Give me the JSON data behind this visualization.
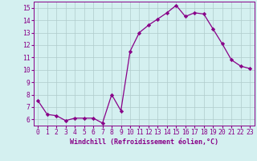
{
  "x": [
    0,
    1,
    2,
    3,
    4,
    5,
    6,
    7,
    8,
    9,
    10,
    11,
    12,
    13,
    14,
    15,
    16,
    17,
    18,
    19,
    20,
    21,
    22,
    23
  ],
  "y": [
    7.5,
    6.4,
    6.3,
    5.9,
    6.1,
    6.1,
    6.1,
    5.7,
    8.0,
    6.7,
    11.5,
    13.0,
    13.6,
    14.1,
    14.6,
    15.2,
    14.3,
    14.6,
    14.5,
    13.3,
    12.1,
    10.8,
    10.3,
    10.1
  ],
  "line_color": "#880088",
  "marker": "D",
  "markersize": 2.2,
  "linewidth": 0.9,
  "background_color": "#d4f0f0",
  "grid_color": "#b0cccc",
  "xlabel": "Windchill (Refroidissement éolien,°C)",
  "xlabel_fontsize": 6.0,
  "ylabel_ticks": [
    6,
    7,
    8,
    9,
    10,
    11,
    12,
    13,
    14,
    15
  ],
  "xlim": [
    -0.5,
    23.5
  ],
  "ylim": [
    5.5,
    15.5
  ],
  "tick_fontsize": 5.8
}
